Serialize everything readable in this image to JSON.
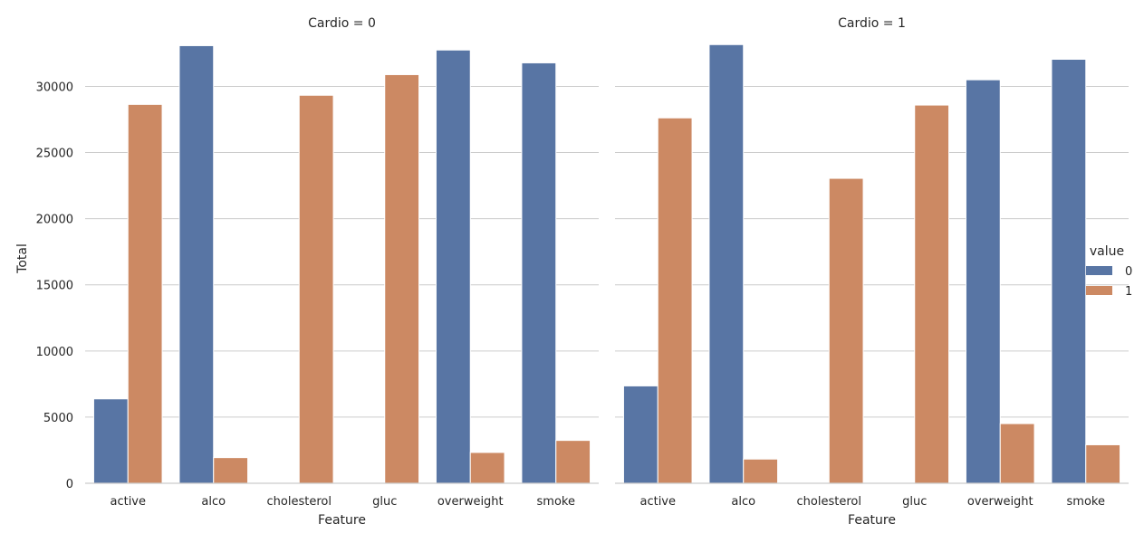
{
  "chart_data": {
    "type": "bar",
    "xlabel": "Feature",
    "ylabel": "Total",
    "ylim": [
      0,
      34000
    ],
    "yticks": [
      0,
      5000,
      10000,
      15000,
      20000,
      25000,
      30000
    ],
    "grid": true,
    "categories": [
      "active",
      "alco",
      "cholesterol",
      "gluc",
      "overweight",
      "smoke"
    ],
    "legend": {
      "title": "value",
      "placement": "right",
      "entries": [
        {
          "label": "0",
          "color": "#5875a4"
        },
        {
          "label": "1",
          "color": "#cc8963"
        }
      ]
    },
    "panels": [
      {
        "title": "Cardio = 0",
        "series": [
          {
            "name": "0",
            "values": [
              6380,
              33080,
              0,
              0,
              32750,
              31780
            ]
          },
          {
            "name": "1",
            "values": [
              28640,
              1940,
              29330,
              30890,
              2330,
              3240
            ]
          }
        ]
      },
      {
        "title": "Cardio = 1",
        "series": [
          {
            "name": "0",
            "values": [
              7360,
              33160,
              0,
              0,
              30500,
              32050
            ]
          },
          {
            "name": "1",
            "values": [
              27620,
              1830,
              23050,
              28590,
              4510,
              2910
            ]
          }
        ]
      }
    ]
  }
}
